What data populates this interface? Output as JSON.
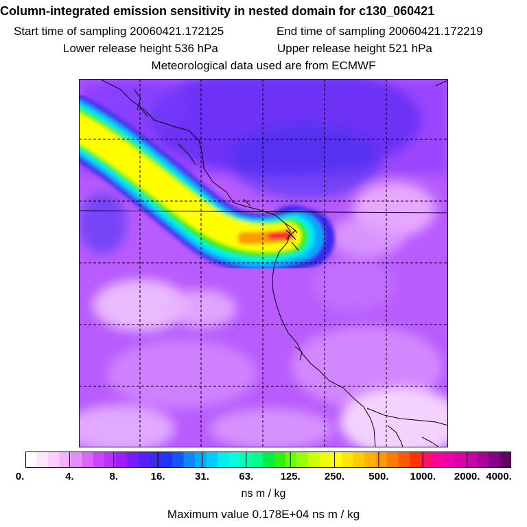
{
  "header": {
    "title": "Column-integrated emission sensitivity in nested domain for c130_060421",
    "start_time": "Start time of sampling 20060421.172125",
    "end_time": "End time of sampling 20060421.172219",
    "lower_height": "Lower release height  536 hPa",
    "upper_height": "Upper release height  521 hPa",
    "met_source": "Meteorological data used are from ECMWF"
  },
  "colorbar": {
    "tick_labels": [
      "0.",
      "4.",
      "8.",
      "16.",
      "31.",
      "63.",
      "125.",
      "250.",
      "500.",
      "1000.",
      "2000.",
      "4000."
    ],
    "tick_values": [
      0,
      4,
      8,
      16,
      31,
      63,
      125,
      250,
      500,
      1000,
      2000,
      4000
    ],
    "colors": [
      "#ffffff",
      "#ffe6ff",
      "#ffccff",
      "#f5b3ff",
      "#e68cff",
      "#d966ff",
      "#cc44ff",
      "#b833ff",
      "#9a1fff",
      "#7a1aff",
      "#5520ff",
      "#3a2aee",
      "#2233ff",
      "#1455ff",
      "#0a88ff",
      "#00aaff",
      "#00ccff",
      "#00eeee",
      "#00ffdd",
      "#00ffb0",
      "#00ff88",
      "#00ee44",
      "#33ee11",
      "#66ff00",
      "#99ff00",
      "#ccff00",
      "#eeff00",
      "#ffff00",
      "#ffe600",
      "#ffcc00",
      "#ffb300",
      "#ff9900",
      "#ff7a00",
      "#ff5a00",
      "#ff3300",
      "#ff1166",
      "#ff0099",
      "#ee00aa",
      "#dd00aa",
      "#cc00aa",
      "#aa0099",
      "#880088",
      "#660066"
    ],
    "units": "ns m / kg"
  },
  "footer": {
    "max_value": "Maximum value  0.178E+04 ns m / kg"
  },
  "map": {
    "background_color": "#b85cff",
    "plume_colors": [
      "#3a2aee",
      "#00aaff",
      "#00eeee",
      "#33ee11",
      "#ffff00",
      "#ff9900",
      "#ff1133"
    ],
    "grid_style": "dashed",
    "release_marker": "X"
  }
}
